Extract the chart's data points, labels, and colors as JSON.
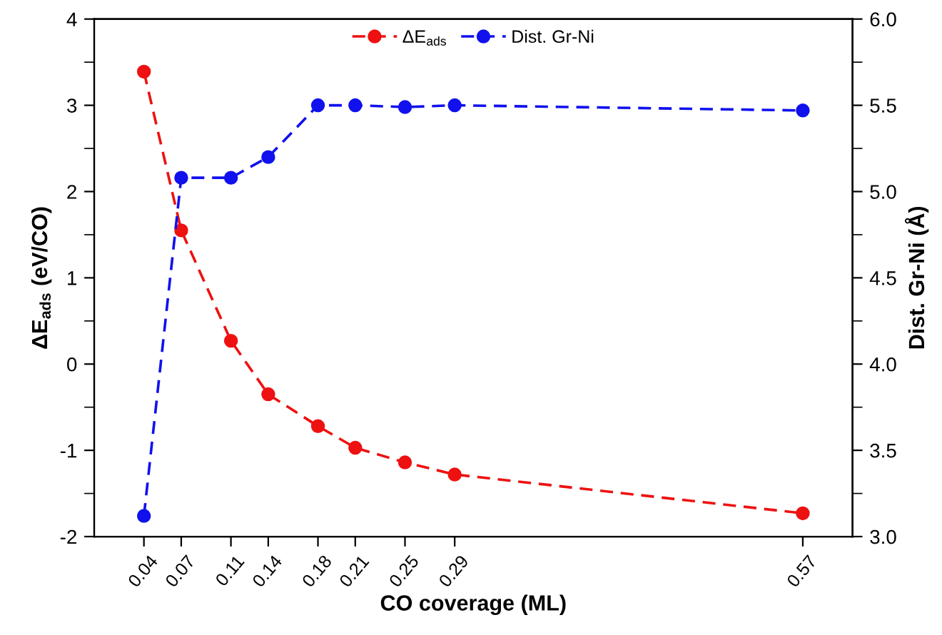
{
  "chart_data": {
    "type": "line",
    "xlabel": "CO coverage (ML)",
    "ylabel": "ΔE$_{ads}$ (eV/CO)",
    "y2label": "Dist. Gr-Ni (Å)",
    "x": [
      0.04,
      0.07,
      0.11,
      0.14,
      0.18,
      0.21,
      0.25,
      0.29,
      0.57
    ],
    "series": [
      {
        "name": "ΔE$_{ads}$",
        "color": "#ee1111",
        "values": [
          3.39,
          1.55,
          0.27,
          -0.35,
          -0.72,
          -0.97,
          -1.14,
          -1.28,
          -1.73
        ]
      },
      {
        "name": "Dist. Gr-Ni",
        "color": "#1111ee",
        "axis": "y2",
        "values": [
          3.12,
          5.08,
          5.08,
          5.2,
          5.5,
          5.5,
          5.49,
          5.5,
          5.47
        ]
      }
    ],
    "xlim": [
      0,
      0.61
    ],
    "xticks": [
      0.04,
      0.07,
      0.11,
      0.14,
      0.18,
      0.21,
      0.25,
      0.29,
      0.57
    ],
    "ylim": [
      -2,
      4
    ],
    "yticks": [
      -2,
      -1,
      0,
      1,
      2,
      3,
      4
    ],
    "y2lim": [
      3.0,
      6.0
    ],
    "y2ticks": [
      {
        "value": 3,
        "label": "3.0"
      },
      3.5,
      {
        "value": 4,
        "label": "4.0"
      },
      4.5,
      {
        "value": 5,
        "label": "5.0"
      },
      5.5,
      {
        "value": 6,
        "label": "6.0"
      }
    ],
    "marker": "circle",
    "line_style": "dashed",
    "legend": "top",
    "grid": false
  }
}
